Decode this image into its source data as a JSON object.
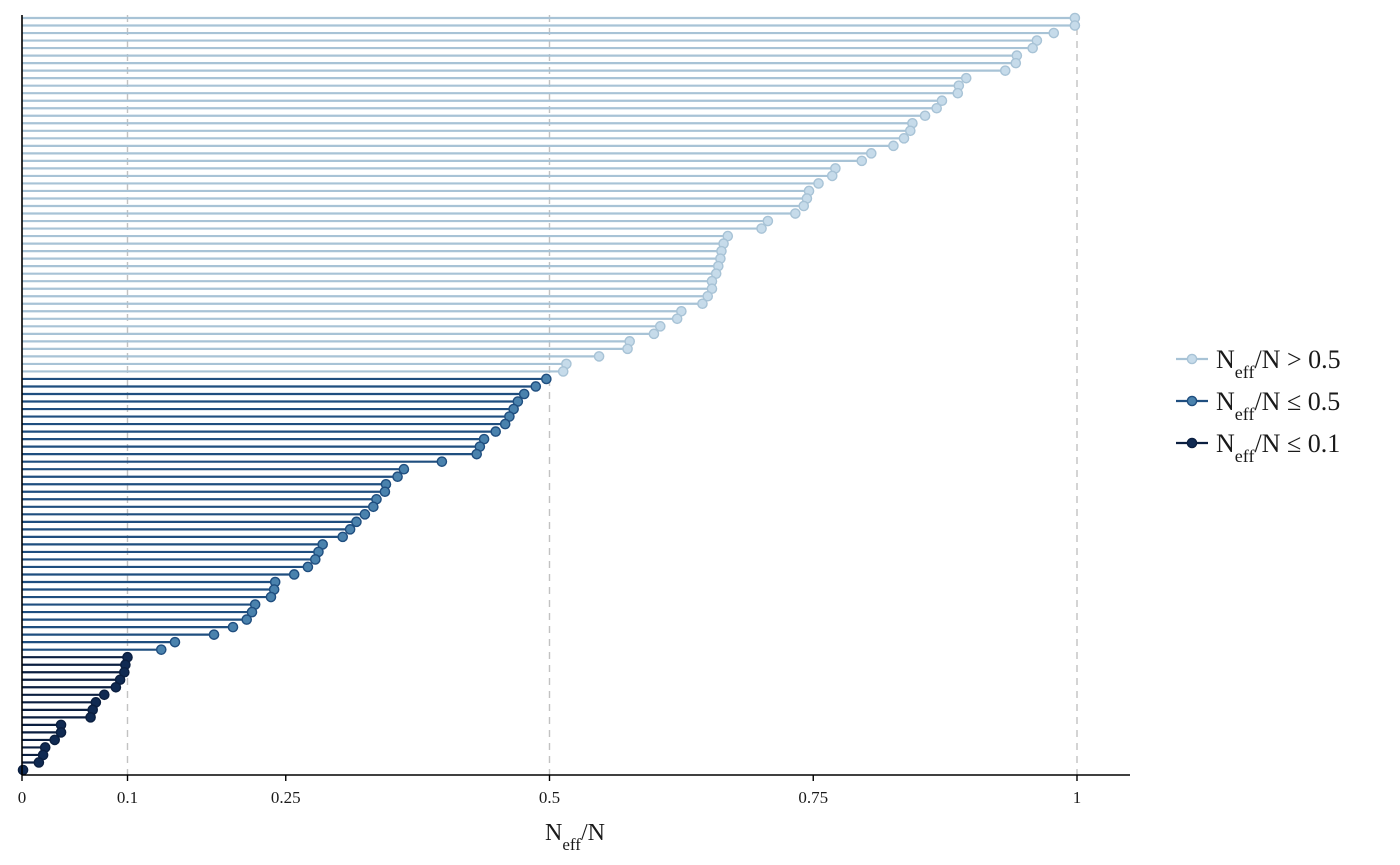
{
  "chart_data": {
    "type": "lollipop",
    "xlim": [
      0,
      1.05
    ],
    "x_ticks": [
      {
        "value": 0,
        "label": "0"
      },
      {
        "value": 0.1,
        "label": "0.1"
      },
      {
        "value": 0.25,
        "label": "0.25"
      },
      {
        "value": 0.5,
        "label": "0.5"
      },
      {
        "value": 0.75,
        "label": "0.75"
      },
      {
        "value": 1,
        "label": "1"
      }
    ],
    "reference_lines": [
      0.1,
      0.5,
      1
    ],
    "xlabel": {
      "main": "N",
      "sub": "eff",
      "suffix": "/N"
    },
    "grid": false,
    "legend_position": "right",
    "legend": [
      {
        "key": "high",
        "prefix": "N",
        "sub": "eff",
        "suffix": "/N > 0.5",
        "line_color": "#a8c3d6",
        "point_fill": "#c6dbea",
        "point_stroke": "#a8c3d6"
      },
      {
        "key": "mid",
        "prefix": "N",
        "sub": "eff",
        "suffix": "/N ≤ 0.5",
        "line_color": "#1f4e7f",
        "point_fill": "#4a82ad",
        "point_stroke": "#1f4e7f"
      },
      {
        "key": "low",
        "prefix": "N",
        "sub": "eff",
        "suffix": "/N ≤ 0.1",
        "line_color": "#0b1f40",
        "point_fill": "#102a52",
        "point_stroke": "#0b1f40"
      }
    ],
    "values": [
      0.998,
      0.998,
      0.978,
      0.962,
      0.958,
      0.943,
      0.942,
      0.932,
      0.895,
      0.888,
      0.887,
      0.872,
      0.867,
      0.856,
      0.844,
      0.842,
      0.836,
      0.826,
      0.805,
      0.796,
      0.771,
      0.768,
      0.755,
      0.746,
      0.744,
      0.741,
      0.733,
      0.707,
      0.701,
      0.669,
      0.665,
      0.663,
      0.662,
      0.66,
      0.658,
      0.654,
      0.654,
      0.65,
      0.645,
      0.625,
      0.621,
      0.605,
      0.599,
      0.576,
      0.574,
      0.547,
      0.516,
      0.513,
      0.497,
      0.487,
      0.476,
      0.47,
      0.466,
      0.462,
      0.458,
      0.449,
      0.438,
      0.434,
      0.431,
      0.398,
      0.362,
      0.356,
      0.345,
      0.344,
      0.336,
      0.333,
      0.325,
      0.317,
      0.311,
      0.304,
      0.285,
      0.281,
      0.278,
      0.271,
      0.258,
      0.24,
      0.239,
      0.236,
      0.221,
      0.218,
      0.213,
      0.2,
      0.182,
      0.145,
      0.132,
      0.1,
      0.098,
      0.097,
      0.093,
      0.089,
      0.078,
      0.07,
      0.067,
      0.065,
      0.037,
      0.037,
      0.031,
      0.022,
      0.02,
      0.016,
      0.001
    ]
  }
}
